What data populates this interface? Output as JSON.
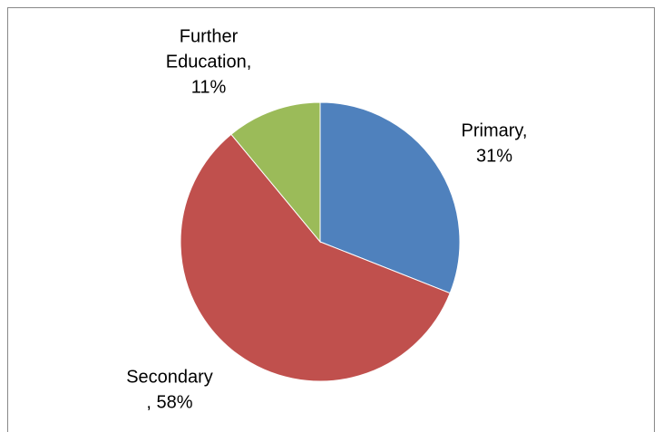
{
  "chart_data": {
    "type": "pie",
    "values": [
      31,
      58,
      11
    ],
    "labels": [
      [
        "Primary,",
        "31%"
      ],
      [
        "Secondary",
        ", 58%"
      ],
      [
        "Further",
        "Education,",
        "11%"
      ]
    ],
    "colors": [
      "#4f81bd",
      "#c0504d",
      "#9bbb59"
    ]
  }
}
